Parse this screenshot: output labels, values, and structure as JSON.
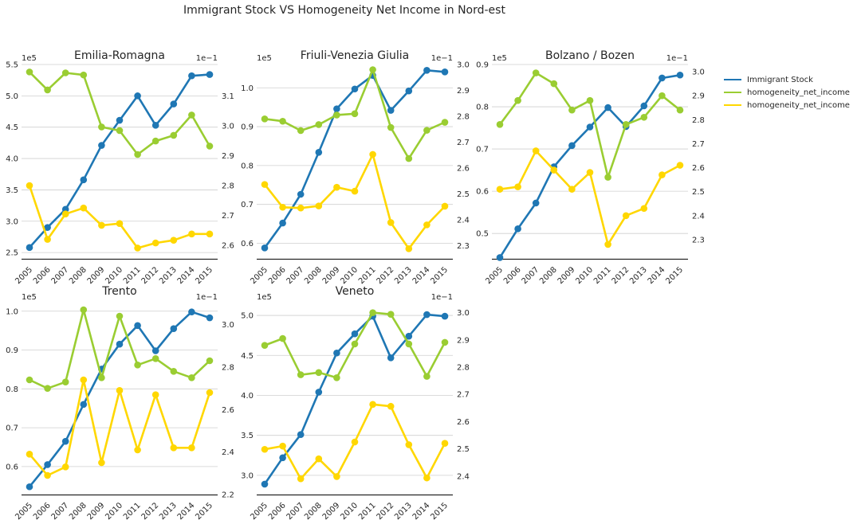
{
  "figure_title": "Immigrant Stock VS Homogeneity Net Income in Nord-est",
  "legend": [
    {
      "label": "Immigrant Stock",
      "color": "#1f77b4"
    },
    {
      "label": "homogeneity_net_income",
      "color": "#9acd32"
    },
    {
      "label": "homogeneity_net_income",
      "color": "#ffd700"
    }
  ],
  "chart_data": [
    {
      "type": "line",
      "title": "Emilia-Romagna",
      "x": [
        "2005",
        "2006",
        "2007",
        "2008",
        "2009",
        "2010",
        "2011",
        "2012",
        "2013",
        "2014",
        "2015"
      ],
      "left_axis": {
        "exponent": "1e5",
        "ylim": [
          2.4,
          5.5
        ],
        "ticks": [
          2.5,
          3.0,
          3.5,
          4.0,
          4.5,
          5.0,
          5.5
        ],
        "tick_labels": [
          "2.5",
          "3.0",
          "3.5",
          "4.0",
          "4.5",
          "5.0",
          "5.5"
        ]
      },
      "right_axis": {
        "exponent": "1e−1",
        "ylim": [
          2.555,
          3.205
        ],
        "ticks": [
          2.6,
          2.7,
          2.8,
          2.9,
          3.0,
          3.1
        ],
        "tick_labels": [
          "2.6",
          "2.7",
          "2.8",
          "2.9",
          "3.0",
          "3.1"
        ]
      },
      "series": [
        {
          "axis": "left",
          "color": "#1f77b4",
          "values": [
            2.58,
            2.9,
            3.19,
            3.66,
            4.21,
            4.61,
            5.0,
            4.53,
            4.87,
            5.32,
            5.34
          ]
        },
        {
          "axis": "right",
          "color": "#9acd32",
          "values": [
            3.18,
            3.12,
            3.177,
            3.17,
            2.996,
            2.984,
            2.904,
            2.949,
            2.968,
            3.036,
            2.932
          ]
        },
        {
          "axis": "right",
          "color": "#ffd700",
          "values": [
            2.8,
            2.62,
            2.705,
            2.725,
            2.667,
            2.673,
            2.591,
            2.608,
            2.617,
            2.638,
            2.638
          ]
        }
      ]
    },
    {
      "type": "line",
      "title": "Friuli-Venezia Giulia",
      "x": [
        "2005",
        "2006",
        "2007",
        "2008",
        "2009",
        "2010",
        "2011",
        "2012",
        "2013",
        "2014",
        "2015"
      ],
      "left_axis": {
        "exponent": "1e5",
        "ylim": [
          0.56,
          1.06
        ],
        "ticks": [
          0.6,
          0.7,
          0.8,
          0.9,
          1.0
        ],
        "tick_labels": [
          "0.6",
          "0.7",
          "0.8",
          "0.9",
          "1.0"
        ]
      },
      "right_axis": {
        "exponent": "1e−1",
        "ylim": [
          2.25,
          3.0
        ],
        "ticks": [
          2.3,
          2.4,
          2.5,
          2.6,
          2.7,
          2.8,
          2.9,
          3.0
        ],
        "tick_labels": [
          "2.3",
          "2.4",
          "2.5",
          "2.6",
          "2.7",
          "2.8",
          "2.9",
          "3.0"
        ]
      },
      "series": [
        {
          "axis": "left",
          "color": "#1f77b4",
          "values": [
            0.588,
            0.652,
            0.726,
            0.834,
            0.946,
            0.997,
            1.032,
            0.942,
            0.992,
            1.045,
            1.041
          ]
        },
        {
          "axis": "right",
          "color": "#9acd32",
          "values": [
            2.79,
            2.781,
            2.745,
            2.768,
            2.805,
            2.81,
            2.98,
            2.757,
            2.637,
            2.746,
            2.777
          ]
        },
        {
          "axis": "right",
          "color": "#ffd700",
          "values": [
            2.537,
            2.449,
            2.446,
            2.454,
            2.526,
            2.511,
            2.653,
            2.39,
            2.289,
            2.381,
            2.453
          ]
        }
      ]
    },
    {
      "type": "line",
      "title": "Bolzano / Bozen",
      "x": [
        "2005",
        "2006",
        "2007",
        "2008",
        "2009",
        "2010",
        "2011",
        "2012",
        "2013",
        "2014",
        "2015"
      ],
      "left_axis": {
        "exponent": "1e5",
        "ylim": [
          0.44,
          0.9
        ],
        "ticks": [
          0.5,
          0.6,
          0.7,
          0.8,
          0.9
        ],
        "tick_labels": [
          "0.5",
          "0.6",
          "0.7",
          "0.8",
          "0.9"
        ]
      },
      "right_axis": {
        "exponent": "1e−1",
        "ylim": [
          2.22,
          3.03
        ],
        "ticks": [
          2.3,
          2.4,
          2.5,
          2.6,
          2.7,
          2.8,
          2.9,
          3.0
        ],
        "tick_labels": [
          "2.3",
          "2.4",
          "2.5",
          "2.6",
          "2.7",
          "2.8",
          "2.9",
          "3.0"
        ]
      },
      "series": [
        {
          "axis": "left",
          "color": "#1f77b4",
          "values": [
            0.443,
            0.511,
            0.572,
            0.658,
            0.708,
            0.752,
            0.798,
            0.753,
            0.802,
            0.868,
            0.875
          ]
        },
        {
          "axis": "right",
          "color": "#9acd32",
          "values": [
            2.78,
            2.88,
            2.995,
            2.95,
            2.84,
            2.88,
            2.56,
            2.78,
            2.81,
            2.9,
            2.84
          ]
        },
        {
          "axis": "right",
          "color": "#ffd700",
          "values": [
            2.51,
            2.52,
            2.67,
            2.59,
            2.51,
            2.58,
            2.28,
            2.4,
            2.43,
            2.57,
            2.61
          ]
        }
      ]
    },
    {
      "type": "line",
      "title": "Trento",
      "x": [
        "2005",
        "2006",
        "2007",
        "2008",
        "2009",
        "2010",
        "2011",
        "2012",
        "2013",
        "2014",
        "2015"
      ],
      "left_axis": {
        "exponent": "1e5",
        "ylim": [
          0.528,
          1.02
        ],
        "ticks": [
          0.6,
          0.7,
          0.8,
          0.9,
          1.0
        ],
        "tick_labels": [
          "0.6",
          "0.7",
          "0.8",
          "0.9",
          "1.0"
        ]
      },
      "right_axis": {
        "exponent": "1e−1",
        "ylim": [
          2.2,
          3.1
        ],
        "ticks": [
          2.2,
          2.4,
          2.6,
          2.8,
          3.0
        ],
        "tick_labels": [
          "2.2",
          "2.4",
          "2.6",
          "2.8",
          "3.0"
        ]
      },
      "series": [
        {
          "axis": "left",
          "color": "#1f77b4",
          "values": [
            0.548,
            0.605,
            0.665,
            0.76,
            0.851,
            0.915,
            0.963,
            0.898,
            0.955,
            0.998,
            0.983
          ]
        },
        {
          "axis": "right",
          "color": "#9acd32",
          "values": [
            2.74,
            2.7,
            2.73,
            3.07,
            2.75,
            3.04,
            2.81,
            2.84,
            2.78,
            2.75,
            2.83
          ]
        },
        {
          "axis": "right",
          "color": "#ffd700",
          "values": [
            2.39,
            2.29,
            2.33,
            2.74,
            2.35,
            2.69,
            2.41,
            2.67,
            2.42,
            2.42,
            2.68
          ]
        }
      ]
    },
    {
      "type": "line",
      "title": "Veneto",
      "x": [
        "2005",
        "2006",
        "2007",
        "2008",
        "2009",
        "2010",
        "2011",
        "2012",
        "2013",
        "2014",
        "2015"
      ],
      "left_axis": {
        "exponent": "1e5",
        "ylim": [
          2.76,
          5.15
        ],
        "ticks": [
          3.0,
          3.5,
          4.0,
          4.5,
          5.0
        ],
        "tick_labels": [
          "3.0",
          "3.5",
          "4.0",
          "4.5",
          "5.0"
        ]
      },
      "right_axis": {
        "exponent": "1e−1",
        "ylim": [
          2.332,
          3.034
        ],
        "ticks": [
          2.4,
          2.5,
          2.6,
          2.7,
          2.8,
          2.9,
          3.0
        ],
        "tick_labels": [
          "2.4",
          "2.5",
          "2.6",
          "2.7",
          "2.8",
          "2.9",
          "3.0"
        ]
      },
      "series": [
        {
          "axis": "left",
          "color": "#1f77b4",
          "values": [
            2.89,
            3.22,
            3.51,
            4.04,
            4.53,
            4.77,
            4.99,
            4.47,
            4.74,
            5.01,
            4.99
          ]
        },
        {
          "axis": "right",
          "color": "#9acd32",
          "values": [
            2.88,
            2.905,
            2.772,
            2.78,
            2.761,
            2.885,
            3.0,
            2.994,
            2.885,
            2.766,
            2.891
          ]
        },
        {
          "axis": "right",
          "color": "#ffd700",
          "values": [
            2.498,
            2.51,
            2.39,
            2.463,
            2.398,
            2.525,
            2.663,
            2.656,
            2.515,
            2.393,
            2.52
          ]
        }
      ]
    }
  ]
}
